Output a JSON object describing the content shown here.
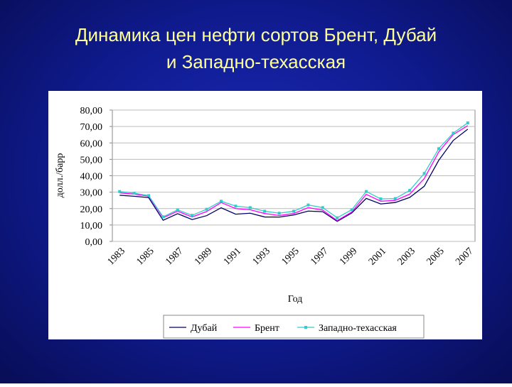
{
  "chart_data": {
    "type": "line",
    "title": [
      "Динамика цен нефти сортов Брент, Дубай",
      "и Западно-техасская"
    ],
    "x_label": "Год",
    "y_label": "долл./барр",
    "categories": [
      "1983",
      null,
      "1985",
      null,
      "1987",
      null,
      "1989",
      null,
      "1991",
      null,
      "1993",
      null,
      "1995",
      null,
      "1997",
      null,
      "1999",
      null,
      "2001",
      null,
      "2003",
      null,
      "2005",
      null,
      "2007"
    ],
    "series": [
      {
        "name": "Дубай",
        "color": "#000066",
        "values": [
          28.1,
          27.5,
          26.7,
          12.9,
          16.9,
          13.3,
          15.7,
          20.5,
          16.6,
          17.2,
          14.9,
          14.8,
          16.1,
          18.5,
          18.1,
          12.2,
          17.3,
          26.2,
          22.8,
          23.7,
          26.8,
          33.6,
          49.4,
          61.5,
          68.4
        ]
      },
      {
        "name": "Брент",
        "color": "#ff00ff",
        "values": [
          29.6,
          28.8,
          27.6,
          14.4,
          18.4,
          14.9,
          18.2,
          23.7,
          20.0,
          19.3,
          17.0,
          15.8,
          17.0,
          20.6,
          19.1,
          12.7,
          17.9,
          28.7,
          24.5,
          25.0,
          28.8,
          38.3,
          54.5,
          65.1,
          70.5
        ]
      },
      {
        "name": "Западно-техасская",
        "color": "#33cccc",
        "values": [
          30.4,
          29.4,
          27.9,
          15.0,
          19.2,
          15.9,
          19.6,
          24.5,
          21.5,
          20.6,
          18.4,
          17.2,
          18.4,
          22.2,
          20.6,
          14.4,
          19.3,
          30.4,
          25.9,
          26.1,
          31.1,
          41.4,
          56.5,
          66.0,
          72.2
        ],
        "markers": true
      }
    ],
    "ylim": [
      0,
      80
    ],
    "yticks": [
      {
        "value": 0,
        "label": "0,00"
      },
      {
        "value": 10,
        "label": "10,00"
      },
      {
        "value": 20,
        "label": "20,00"
      },
      {
        "value": 30,
        "label": "30,00"
      },
      {
        "value": 40,
        "label": "40,00"
      },
      {
        "value": 50,
        "label": "50,00"
      },
      {
        "value": 60,
        "label": "60,00"
      },
      {
        "value": 70,
        "label": "70,00"
      },
      {
        "value": 80,
        "label": "80,00"
      }
    ],
    "grid": true,
    "legend": "bottom"
  }
}
